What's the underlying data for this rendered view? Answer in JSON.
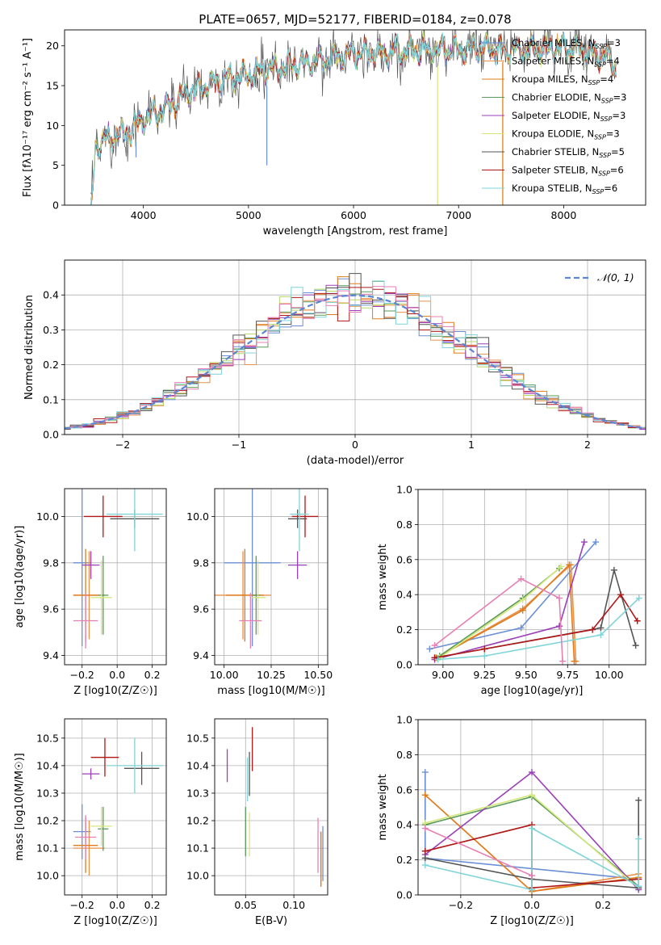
{
  "title": "PLATE=0657, MJD=52177, FIBERID=0184, z=0.078",
  "colors": {
    "Chabrier MILES": "#6b8fd6",
    "Salpeter MILES": "#e8924a",
    "Kroupa MILES": "#e07b1c",
    "Chabrier ELODIE": "#5a9a5a",
    "Salpeter ELODIE": "#9a3fb8",
    "Kroupa ELODIE": "#d4e87a",
    "Chabrier STELIB": "#555555",
    "Salpeter STELIB": "#b01818",
    "Kroupa STELIB": "#7fd4d8",
    "pink": "#e87fb4",
    "green": "#b6d96a",
    "normal": "#5b86d6"
  },
  "chart_data": [
    {
      "id": "spectrum",
      "type": "line",
      "title": "PLATE=0657, MJD=52177, FIBERID=0184, z=0.078",
      "xlabel": "wavelength [Angstrom, rest frame]",
      "ylabel": "Flux [fλ10⁻¹⁷ erg cm⁻² s⁻¹ A⁻¹]",
      "xlim": [
        3250,
        8780
      ],
      "ylim": [
        0,
        22
      ],
      "xticks": [
        4000,
        5000,
        6000,
        7000,
        8000
      ],
      "yticks": [
        0,
        5,
        10,
        15,
        20
      ],
      "grid": false,
      "legend_position": "upper-right",
      "continuum": {
        "x": [
          3500,
          3550,
          3600,
          3700,
          3800,
          3900,
          4000,
          4100,
          4200,
          4400,
          4600,
          4800,
          5000,
          5200,
          5400,
          5600,
          5800,
          6000,
          6200,
          6400,
          6600,
          6800,
          7000,
          7200,
          7400,
          7600,
          7800,
          8000,
          8200,
          8400,
          8500
        ],
        "y": [
          5,
          7.5,
          8,
          8.5,
          9,
          9.5,
          11,
          11.5,
          12,
          14,
          15,
          16,
          16.5,
          17,
          17.5,
          18,
          18.5,
          19,
          19,
          19.3,
          19.5,
          19.5,
          19.6,
          19.7,
          19.5,
          19.5,
          19.6,
          19.8,
          19.5,
          18.5,
          17
        ]
      },
      "dips": [
        {
          "x": 5175,
          "y": 5
        },
        {
          "x": 3930,
          "y": 6
        },
        {
          "x": 6800,
          "y": 0
        },
        {
          "x": 7420,
          "y": 0
        }
      ],
      "series": [
        {
          "name": "Chabrier MILES, N_SSP=3",
          "model": "Chabrier MILES",
          "n_ssp": "3"
        },
        {
          "name": "Salpeter MILES, N_SSP=4",
          "model": "Salpeter MILES",
          "n_ssp": "4"
        },
        {
          "name": "Kroupa MILES, N_SSP=4",
          "model": "Kroupa MILES",
          "n_ssp": "4"
        },
        {
          "name": "Chabrier ELODIE, N_SSP=3",
          "model": "Chabrier ELODIE",
          "n_ssp": "3"
        },
        {
          "name": "Salpeter ELODIE, N_SSP=3",
          "model": "Salpeter ELODIE",
          "n_ssp": "3"
        },
        {
          "name": "Kroupa ELODIE, N_SSP=3",
          "model": "Kroupa ELODIE",
          "n_ssp": "3"
        },
        {
          "name": "Chabrier STELIB, N_SSP=5",
          "model": "Chabrier STELIB",
          "n_ssp": "5"
        },
        {
          "name": "Salpeter STELIB, N_SSP=6",
          "model": "Salpeter STELIB",
          "n_ssp": "6"
        },
        {
          "name": "Kroupa STELIB, N_SSP=6",
          "model": "Kroupa STELIB",
          "n_ssp": "6"
        }
      ]
    },
    {
      "id": "residuals",
      "type": "histogram",
      "xlabel": "(data-model)/error",
      "ylabel": "Normed distribution",
      "xlim": [
        -2.5,
        2.5
      ],
      "ylim": [
        0,
        0.5
      ],
      "xticks": [
        -2,
        -1,
        0,
        1,
        2
      ],
      "yticks": [
        0.0,
        0.1,
        0.2,
        0.3,
        0.4
      ],
      "grid": true,
      "legend": "𝒩(0, 1)",
      "legend_position": "upper-right",
      "bin_width": 0.1
    },
    {
      "id": "age-vs-Z",
      "type": "errorbar",
      "xlabel": "Z [log10(Z/Z☉)]",
      "ylabel": "age  [log10(age/yr)]",
      "xlim": [
        -0.3,
        0.28
      ],
      "ylim": [
        9.36,
        10.12
      ],
      "xticks": [
        -0.2,
        0.0,
        0.2
      ],
      "yticks": [
        9.4,
        9.6,
        9.8,
        10.0
      ],
      "grid": true,
      "points": [
        {
          "color": "Chabrier MILES",
          "x": -0.2,
          "xerr": 0.05,
          "y": 9.8,
          "yerr": 0.36
        },
        {
          "color": "Salpeter MILES",
          "x": -0.16,
          "xerr": 0.09,
          "y": 9.66,
          "yerr": 0.19
        },
        {
          "color": "Kroupa MILES",
          "x": -0.18,
          "xerr": 0.07,
          "y": 9.66,
          "yerr": 0.2
        },
        {
          "color": "Chabrier ELODIE",
          "x": -0.08,
          "xerr": 0.03,
          "y": 9.66,
          "yerr": 0.17
        },
        {
          "color": "Salpeter ELODIE",
          "x": -0.15,
          "xerr": 0.05,
          "y": 9.79,
          "yerr": 0.06
        },
        {
          "color": "Kroupa ELODIE",
          "x": -0.09,
          "xerr": 0.06,
          "y": 9.65,
          "yerr": 0.16
        },
        {
          "color": "Chabrier STELIB",
          "x": 0.1,
          "xerr": 0.14,
          "y": 9.99,
          "yerr": 0.04
        },
        {
          "color": "Salpeter STELIB",
          "x": -0.08,
          "xerr": 0.11,
          "y": 10.0,
          "yerr": 0.09
        },
        {
          "color": "Kroupa STELIB",
          "x": 0.1,
          "xerr": 0.16,
          "y": 10.01,
          "yerr": 0.16
        },
        {
          "color": "pink",
          "x": -0.18,
          "xerr": 0.07,
          "y": 9.55,
          "yerr": 0.12
        }
      ]
    },
    {
      "id": "age-vs-mass",
      "type": "errorbar",
      "xlabel": "mass [log10(M/M☉)]",
      "ylabel": "",
      "xlim": [
        9.95,
        10.55
      ],
      "ylim": [
        9.36,
        10.12
      ],
      "xticks": [
        10.0,
        10.25,
        10.5
      ],
      "yticks": [
        9.4,
        9.6,
        9.8,
        10.0
      ],
      "grid": true,
      "points": [
        {
          "color": "Chabrier MILES",
          "x": 10.15,
          "xerr": 0.15,
          "y": 9.8,
          "yerr": 0.36
        },
        {
          "color": "Salpeter MILES",
          "x": 10.1,
          "xerr": 0.15,
          "y": 9.66,
          "yerr": 0.19
        },
        {
          "color": "Kroupa MILES",
          "x": 10.11,
          "xerr": 0.1,
          "y": 9.66,
          "yerr": 0.2
        },
        {
          "color": "Chabrier ELODIE",
          "x": 10.17,
          "xerr": 0.02,
          "y": 9.66,
          "yerr": 0.17
        },
        {
          "color": "Salpeter ELODIE",
          "x": 10.39,
          "xerr": 0.05,
          "y": 9.79,
          "yerr": 0.06
        },
        {
          "color": "Kroupa ELODIE",
          "x": 10.18,
          "xerr": 0.04,
          "y": 9.65,
          "yerr": 0.16
        },
        {
          "color": "Chabrier STELIB",
          "x": 10.39,
          "xerr": 0.05,
          "y": 9.99,
          "yerr": 0.04
        },
        {
          "color": "Salpeter STELIB",
          "x": 10.43,
          "xerr": 0.07,
          "y": 10.0,
          "yerr": 0.09
        },
        {
          "color": "Kroupa STELIB",
          "x": 10.4,
          "xerr": 0.05,
          "y": 10.01,
          "yerr": 0.16
        },
        {
          "color": "pink",
          "x": 10.14,
          "xerr": 0.06,
          "y": 9.55,
          "yerr": 0.12
        }
      ]
    },
    {
      "id": "weight-vs-age",
      "type": "line",
      "xlabel": "age  [log10(age/yr)]",
      "ylabel": "mass weight",
      "xlim": [
        8.85,
        10.22
      ],
      "ylim": [
        0.0,
        1.0
      ],
      "xticks": [
        9.0,
        9.25,
        9.5,
        9.75,
        10.0
      ],
      "yticks": [
        0.0,
        0.2,
        0.4,
        0.6,
        0.8,
        1.0
      ],
      "grid": true,
      "series": [
        {
          "color": "Chabrier MILES",
          "x": [
            8.92,
            9.47,
            9.92
          ],
          "y": [
            0.09,
            0.21,
            0.7
          ]
        },
        {
          "color": "Salpeter MILES",
          "x": [
            8.96,
            9.48,
            9.77,
            9.8
          ],
          "y": [
            0.04,
            0.32,
            0.57,
            0.02
          ]
        },
        {
          "color": "Kroupa MILES",
          "x": [
            8.96,
            9.48,
            9.76,
            9.79
          ],
          "y": [
            0.04,
            0.31,
            0.57,
            0.02
          ]
        },
        {
          "color": "Chabrier ELODIE",
          "x": [
            8.98,
            9.48,
            9.7
          ],
          "y": [
            0.05,
            0.38,
            0.55
          ]
        },
        {
          "color": "Salpeter ELODIE",
          "x": [
            8.95,
            9.7,
            9.85
          ],
          "y": [
            0.03,
            0.22,
            0.7
          ]
        },
        {
          "color": "Kroupa ELODIE",
          "x": [
            8.98,
            9.48,
            9.71
          ],
          "y": [
            0.04,
            0.37,
            0.56
          ]
        },
        {
          "color": "Chabrier STELIB",
          "x": [
            8.95,
            9.25,
            9.95,
            10.03,
            10.16
          ],
          "y": [
            0.04,
            0.09,
            0.21,
            0.54,
            0.11
          ]
        },
        {
          "color": "Salpeter STELIB",
          "x": [
            8.95,
            9.25,
            9.9,
            10.07,
            10.17
          ],
          "y": [
            0.04,
            0.09,
            0.2,
            0.4,
            0.25
          ]
        },
        {
          "color": "Kroupa STELIB",
          "x": [
            8.97,
            9.25,
            9.95,
            10.18
          ],
          "y": [
            0.03,
            0.05,
            0.17,
            0.38
          ]
        },
        {
          "color": "pink",
          "x": [
            8.95,
            9.47,
            9.7,
            9.72
          ],
          "y": [
            0.11,
            0.49,
            0.38,
            0.02
          ]
        }
      ]
    },
    {
      "id": "mass-vs-Z",
      "type": "errorbar",
      "xlabel": "Z [log10(Z/Z☉)]",
      "ylabel": "mass [log10(M/M☉)]",
      "xlim": [
        -0.3,
        0.28
      ],
      "ylim": [
        9.93,
        10.57
      ],
      "xticks": [
        -0.2,
        0.0,
        0.2
      ],
      "yticks": [
        10.0,
        10.1,
        10.2,
        10.3,
        10.4,
        10.5
      ],
      "grid": true,
      "points": [
        {
          "color": "Chabrier MILES",
          "x": -0.2,
          "xerr": 0.05,
          "y": 10.16,
          "yerr": 0.1
        },
        {
          "color": "Salpeter MILES",
          "x": -0.16,
          "xerr": 0.09,
          "y": 10.1,
          "yerr": 0.1
        },
        {
          "color": "Kroupa MILES",
          "x": -0.18,
          "xerr": 0.07,
          "y": 10.11,
          "yerr": 0.1
        },
        {
          "color": "Chabrier ELODIE",
          "x": -0.08,
          "xerr": 0.03,
          "y": 10.17,
          "yerr": 0.08
        },
        {
          "color": "Salpeter ELODIE",
          "x": -0.15,
          "xerr": 0.05,
          "y": 10.37,
          "yerr": 0.02
        },
        {
          "color": "Kroupa ELODIE",
          "x": -0.09,
          "xerr": 0.06,
          "y": 10.18,
          "yerr": 0.07
        },
        {
          "color": "Chabrier STELIB",
          "x": 0.14,
          "xerr": 0.1,
          "y": 10.39,
          "yerr": 0.06
        },
        {
          "color": "Salpeter STELIB",
          "x": -0.07,
          "xerr": 0.08,
          "y": 10.43,
          "yerr": 0.07
        },
        {
          "color": "Kroupa STELIB",
          "x": 0.1,
          "xerr": 0.16,
          "y": 10.4,
          "yerr": 0.1
        },
        {
          "color": "pink",
          "x": -0.18,
          "xerr": 0.06,
          "y": 10.14,
          "yerr": 0.08
        }
      ]
    },
    {
      "id": "mass-vs-ebv",
      "type": "errorbar",
      "xlabel": "E(B-V)",
      "ylabel": "",
      "xlim": [
        0.018,
        0.135
      ],
      "ylim": [
        9.93,
        10.57
      ],
      "xticks": [
        0.05,
        0.1
      ],
      "yticks": [
        10.0,
        10.1,
        10.2,
        10.3,
        10.4,
        10.5
      ],
      "grid": true,
      "points": [
        {
          "color": "Chabrier MILES",
          "x": 0.13,
          "y": 10.08,
          "yerr": 0.1
        },
        {
          "color": "Salpeter MILES",
          "x": 0.128,
          "y": 10.06,
          "yerr": 0.1
        },
        {
          "color": "Kroupa MILES",
          "x": 0.128,
          "y": 10.06,
          "yerr": 0.1
        },
        {
          "color": "Chabrier ELODIE",
          "x": 0.05,
          "y": 10.16,
          "yerr": 0.09
        },
        {
          "color": "Salpeter ELODIE",
          "x": 0.031,
          "y": 10.4,
          "yerr": 0.06
        },
        {
          "color": "Kroupa ELODIE",
          "x": 0.054,
          "y": 10.15,
          "yerr": 0.08
        },
        {
          "color": "Chabrier STELIB",
          "x": 0.054,
          "y": 10.37,
          "yerr": 0.08
        },
        {
          "color": "Salpeter STELIB",
          "x": 0.057,
          "y": 10.46,
          "yerr": 0.08
        },
        {
          "color": "Kroupa STELIB",
          "x": 0.052,
          "y": 10.35,
          "yerr": 0.08
        },
        {
          "color": "pink",
          "x": 0.125,
          "y": 10.11,
          "yerr": 0.1
        }
      ]
    },
    {
      "id": "weight-vs-Z",
      "type": "line",
      "xlabel": "Z [log10(Z/Z☉)]",
      "ylabel": "mass weight",
      "xlim": [
        -0.32,
        0.32
      ],
      "ylim": [
        0.0,
        1.0
      ],
      "xticks": [
        -0.2,
        0.0,
        0.2
      ],
      "yticks": [
        0.0,
        0.2,
        0.4,
        0.6,
        0.8,
        1.0
      ],
      "grid": true,
      "series": [
        {
          "color": "Chabrier MILES",
          "x": [
            -0.3,
            -0.3,
            0.3
          ],
          "y": [
            0.7,
            0.21,
            0.09
          ]
        },
        {
          "color": "Salpeter MILES",
          "x": [
            -0.3,
            0.0,
            0.3
          ],
          "y": [
            0.57,
            0.02,
            0.12
          ]
        },
        {
          "color": "Kroupa MILES",
          "x": [
            -0.3,
            0.0,
            0.3
          ],
          "y": [
            0.57,
            0.02,
            0.1
          ]
        },
        {
          "color": "Chabrier ELODIE",
          "x": [
            -0.3,
            0.0,
            0.3
          ],
          "y": [
            0.4,
            0.56,
            0.05
          ]
        },
        {
          "color": "Salpeter ELODIE",
          "x": [
            -0.3,
            0.0,
            0.3
          ],
          "y": [
            0.23,
            0.7,
            0.03
          ]
        },
        {
          "color": "Kroupa ELODIE",
          "x": [
            -0.3,
            0.0,
            0.3
          ],
          "y": [
            0.41,
            0.57,
            0.04
          ]
        },
        {
          "color": "Chabrier STELIB",
          "x": [
            -0.3,
            0.0,
            0.3,
            0.3
          ],
          "y": [
            0.21,
            0.09,
            0.04,
            0.54
          ]
        },
        {
          "color": "Salpeter STELIB",
          "x": [
            -0.3,
            0.0,
            0.0,
            0.3
          ],
          "y": [
            0.25,
            0.4,
            0.04,
            0.09
          ]
        },
        {
          "color": "Kroupa STELIB",
          "x": [
            -0.3,
            0.0,
            0.0,
            0.3,
            0.3
          ],
          "y": [
            0.17,
            0.03,
            0.38,
            0.05,
            0.32
          ]
        },
        {
          "color": "pink",
          "x": [
            -0.3,
            0.0
          ],
          "y": [
            0.38,
            0.11
          ]
        }
      ]
    }
  ]
}
